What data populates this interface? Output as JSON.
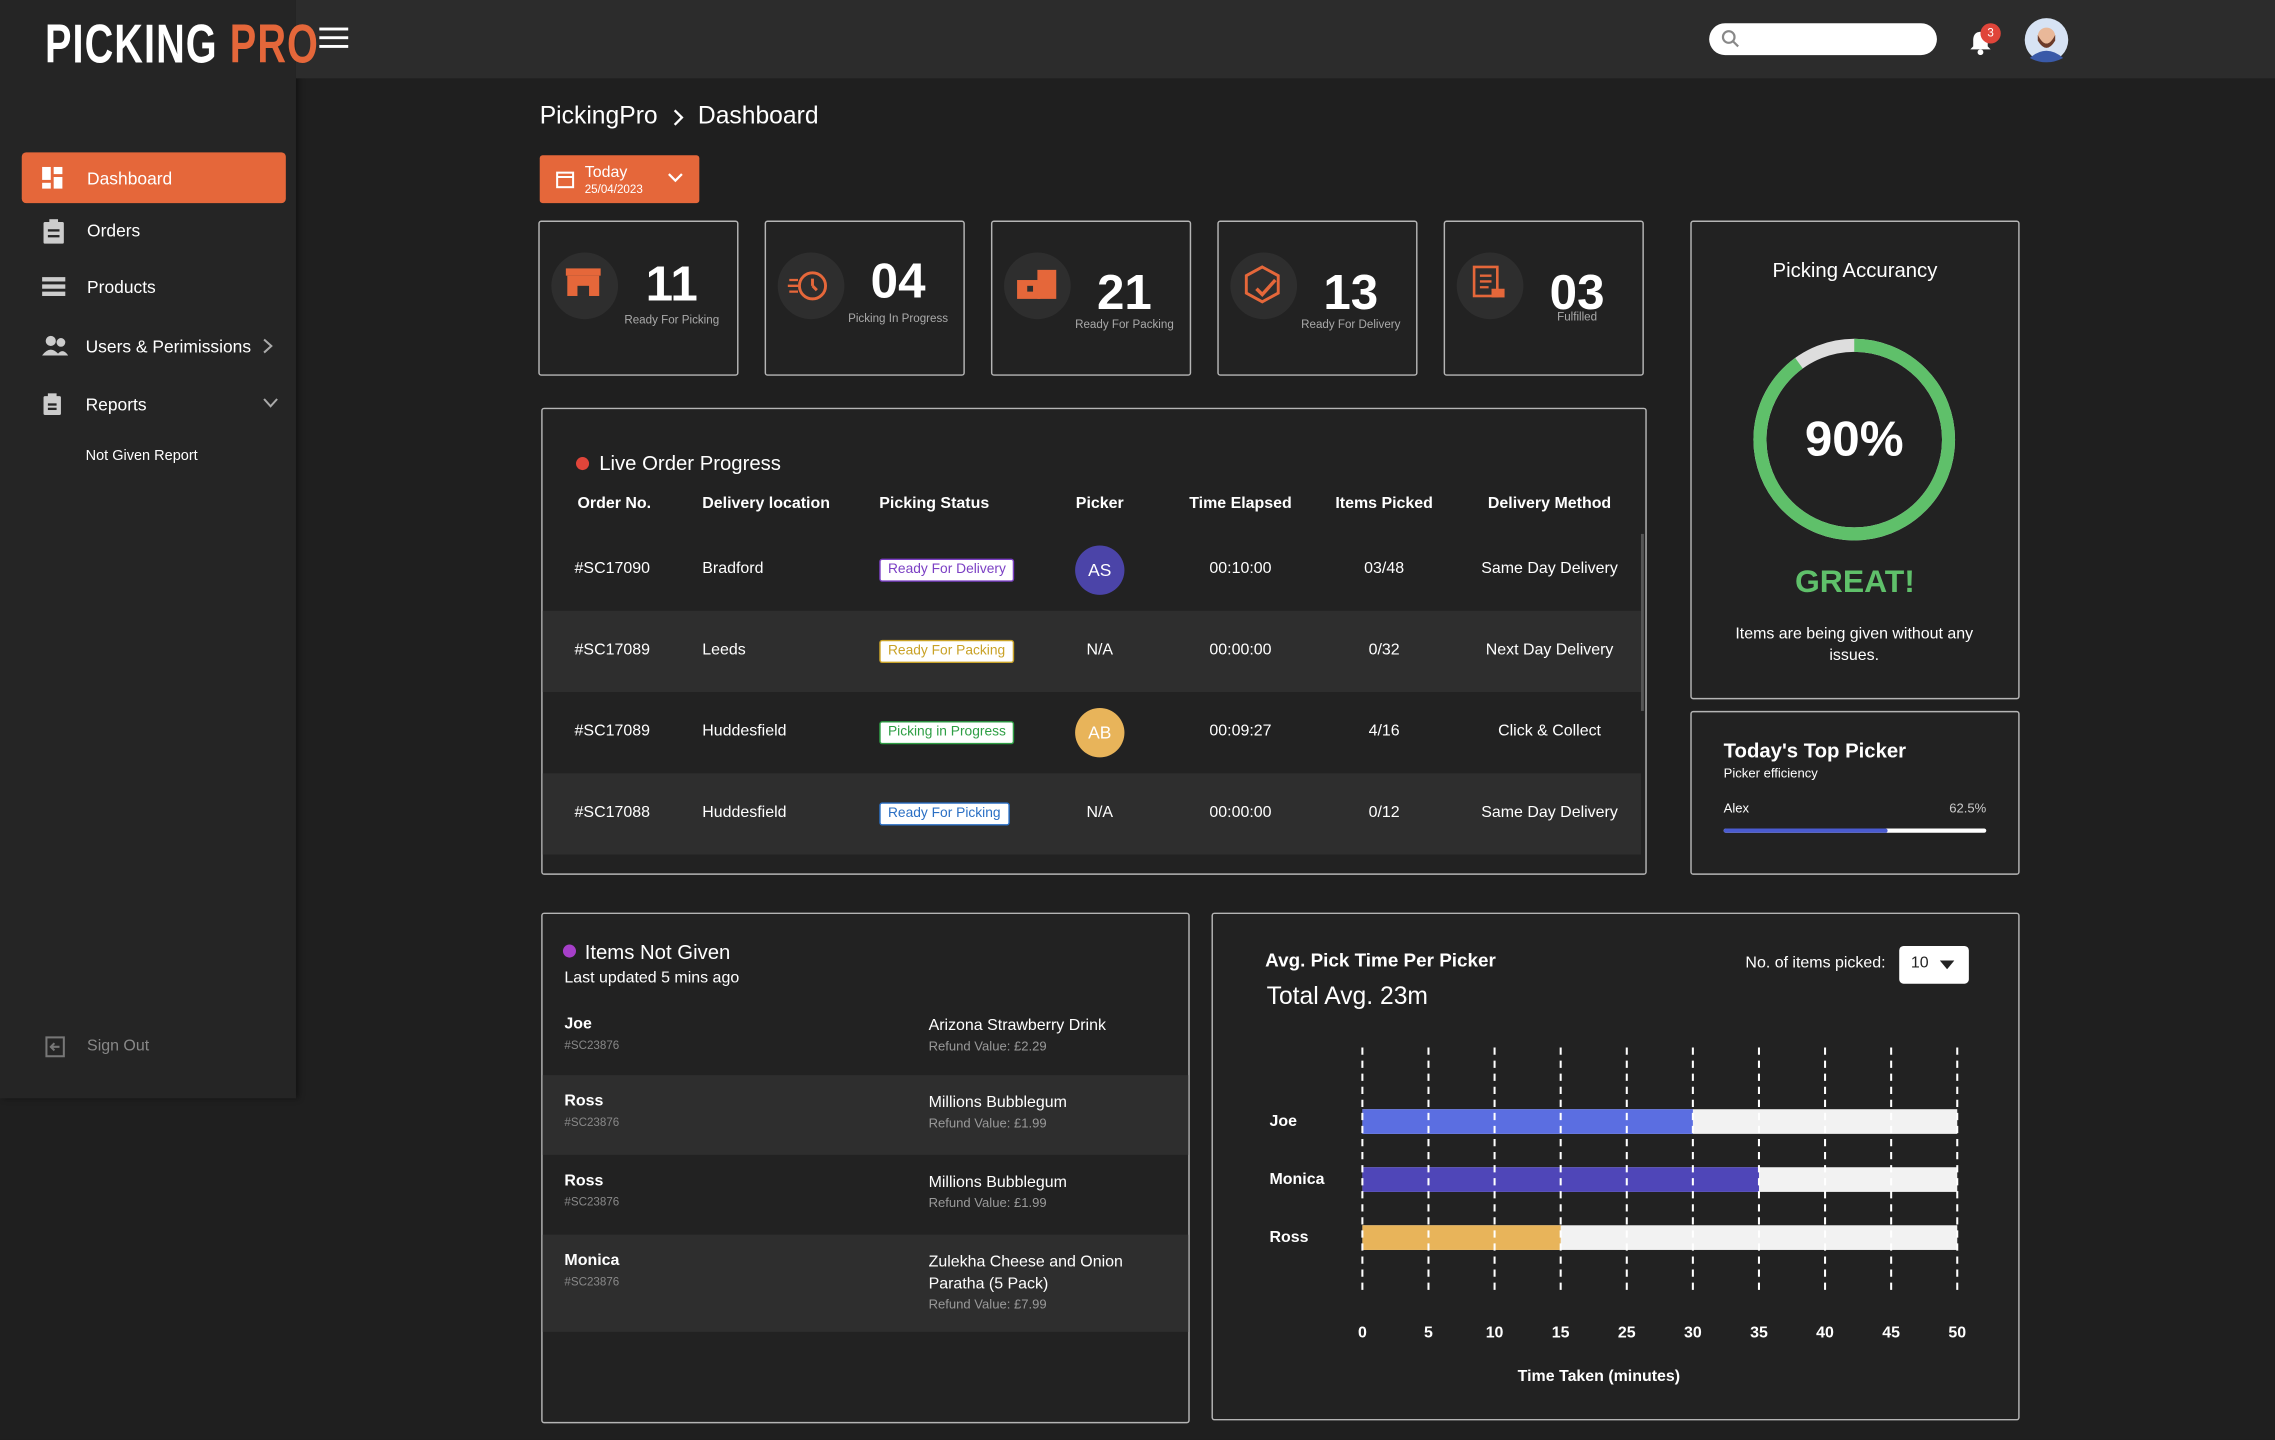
{
  "brand": {
    "name_1": "PICKING",
    "name_2": "PRO"
  },
  "nav": {
    "items": [
      {
        "label": "Dashboard"
      },
      {
        "label": "Orders"
      },
      {
        "label": "Products"
      },
      {
        "label": "Users & Perimissions"
      },
      {
        "label": "Reports"
      },
      {
        "label": "Not Given Report"
      }
    ],
    "sign_out": "Sign Out"
  },
  "header": {
    "notification_count": 3
  },
  "breadcrumb": [
    "PickingPro",
    "Dashboard"
  ],
  "date_filter": {
    "label": "Today",
    "date": "25/04/2023"
  },
  "stats": [
    {
      "value": "11",
      "label": "Ready For Picking"
    },
    {
      "value": "04",
      "label": "Picking In Progress"
    },
    {
      "value": "21",
      "label": "Ready For Packing"
    },
    {
      "value": "13",
      "label": "Ready For Delivery"
    },
    {
      "value": "03",
      "label": "Fulfilled"
    }
  ],
  "live_orders": {
    "title": "Live Order Progress",
    "columns": [
      "Order No.",
      "Delivery location",
      "Picking Status",
      "Picker",
      "Time Elapsed",
      "Items Picked",
      "Delivery Method"
    ],
    "rows": [
      {
        "order": "#SC17090",
        "location": "Bradford",
        "status": "Ready For Delivery",
        "status_color": "#7b3fc4",
        "picker": "AS",
        "picker_color": "#4b44a8",
        "time": "00:10:00",
        "items": "03/48",
        "method": "Same Day Delivery"
      },
      {
        "order": "#SC17089",
        "location": "Leeds",
        "status": "Ready For Packing",
        "status_color": "#c9a227",
        "picker": "N/A",
        "picker_color": null,
        "time": "00:00:00",
        "items": "0/32",
        "method": "Next Day Delivery"
      },
      {
        "order": "#SC17089",
        "location": "Huddesfield",
        "status": "Picking in Progress",
        "status_color": "#2e9e44",
        "picker": "AB",
        "picker_color": "#e8b45a",
        "time": "00:09:27",
        "items": "4/16",
        "method": "Click & Collect"
      },
      {
        "order": "#SC17088",
        "location": "Huddesfield",
        "status": "Ready For Picking",
        "status_color": "#2a6fc4",
        "picker": "N/A",
        "picker_color": null,
        "time": "00:00:00",
        "items": "0/12",
        "method": "Same Day Delivery"
      }
    ]
  },
  "accuracy": {
    "title": "Picking Accurancy",
    "value": 90,
    "value_label": "90%",
    "lim": [
      0,
      100
    ],
    "color": "#5fc06a",
    "rating": "GREAT!",
    "message": "Items are being given without any issues."
  },
  "top_picker": {
    "title": "Today's Top Picker",
    "subtitle": "Picker efficiency",
    "name": "Alex",
    "value": 62.5,
    "value_label": "62.5%",
    "lim": [
      0,
      100
    ],
    "color": "#4a5bd0"
  },
  "items_not_given": {
    "title": "Items Not Given",
    "updated": "Last updated 5 mins ago",
    "rows": [
      {
        "name": "Joe",
        "code": "#SC23876",
        "item": "Arizona Strawberry Drink",
        "refund": "Refund Value: £2.29"
      },
      {
        "name": "Ross",
        "code": "#SC23876",
        "item": "Millions Bubblegum",
        "refund": "Refund Value: £1.99"
      },
      {
        "name": "Ross",
        "code": "#SC23876",
        "item": "Millions Bubblegum",
        "refund": "Refund Value: £1.99"
      },
      {
        "name": "Monica",
        "code": "#SC23876",
        "item": "Zulekha Cheese and Onion Paratha (5 Pack)",
        "refund": "Refund Value: £7.99"
      }
    ]
  },
  "chart_data": {
    "type": "bar",
    "orientation": "horizontal",
    "title": "Avg. Pick Time Per Picker",
    "subtitle": "Total Avg. 23m",
    "filter_label": "No. of items picked:",
    "filter_value": "10",
    "categories": [
      "Joe",
      "Monica",
      "Ross"
    ],
    "values": [
      30,
      35,
      15
    ],
    "colors": [
      "#5b6ee1",
      "#4f46b8",
      "#e8b45a"
    ],
    "track_color": "#f2f2f2",
    "xlim": [
      0,
      50
    ],
    "xticks": [
      0,
      5,
      10,
      15,
      25,
      30,
      35,
      40,
      45,
      50
    ],
    "xlabel": "Time Taken (minutes)",
    "grid": true
  }
}
